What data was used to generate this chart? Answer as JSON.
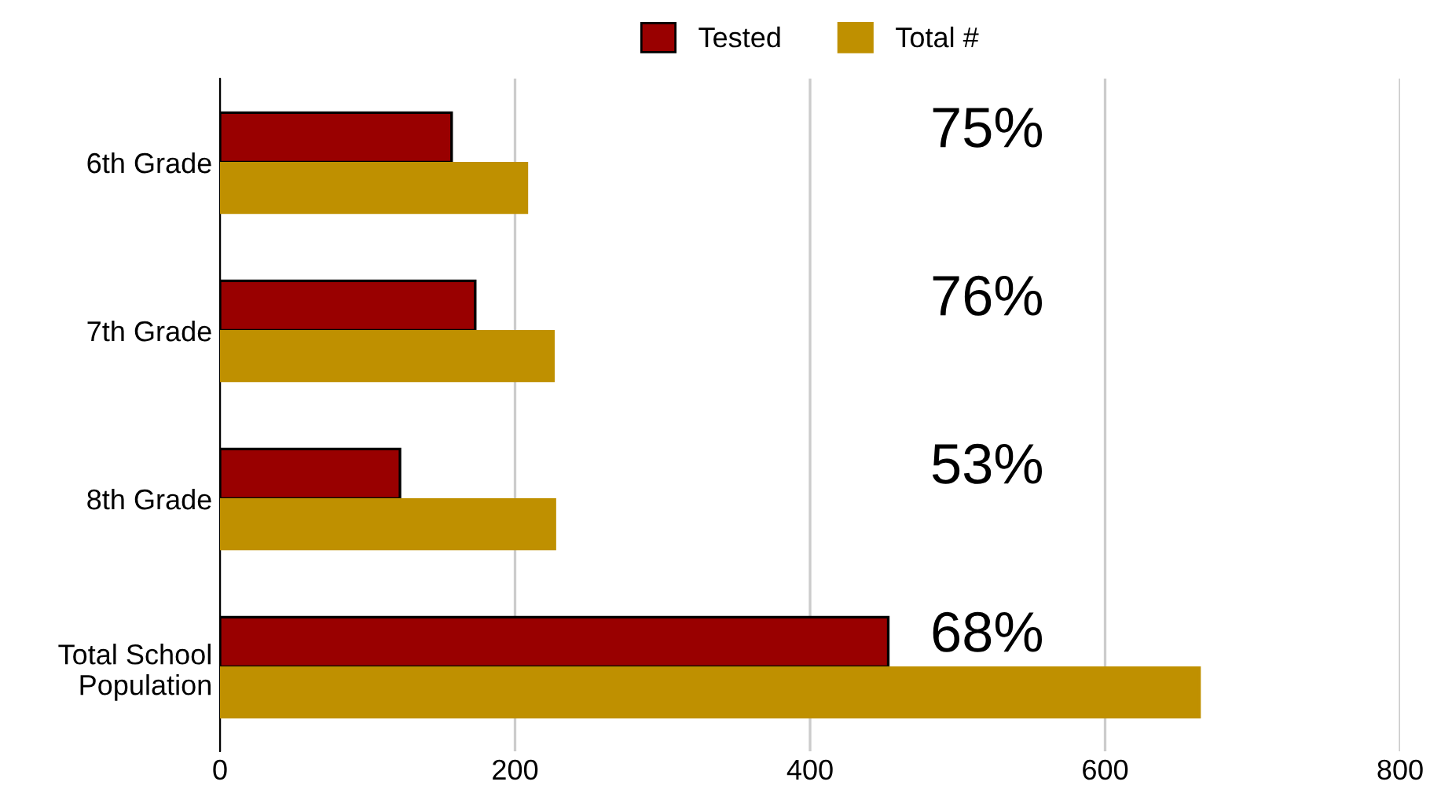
{
  "chart_data": {
    "type": "bar",
    "orientation": "horizontal",
    "categories": [
      "6th Grade",
      "7th Grade",
      "8th Grade",
      "Total School\nPopulation"
    ],
    "series": [
      {
        "name": "Tested",
        "color": "#990000",
        "values": [
          157,
          173,
          122,
          453
        ]
      },
      {
        "name": "Total #",
        "color": "#bf9000",
        "values": [
          208,
          226,
          227,
          664
        ]
      }
    ],
    "xlim": [
      0,
      800
    ],
    "xticks": [
      0,
      200,
      400,
      600,
      800
    ],
    "grid": "x",
    "legend": "top",
    "annotations": [
      "75%",
      "76%",
      "53%",
      "68%"
    ]
  }
}
